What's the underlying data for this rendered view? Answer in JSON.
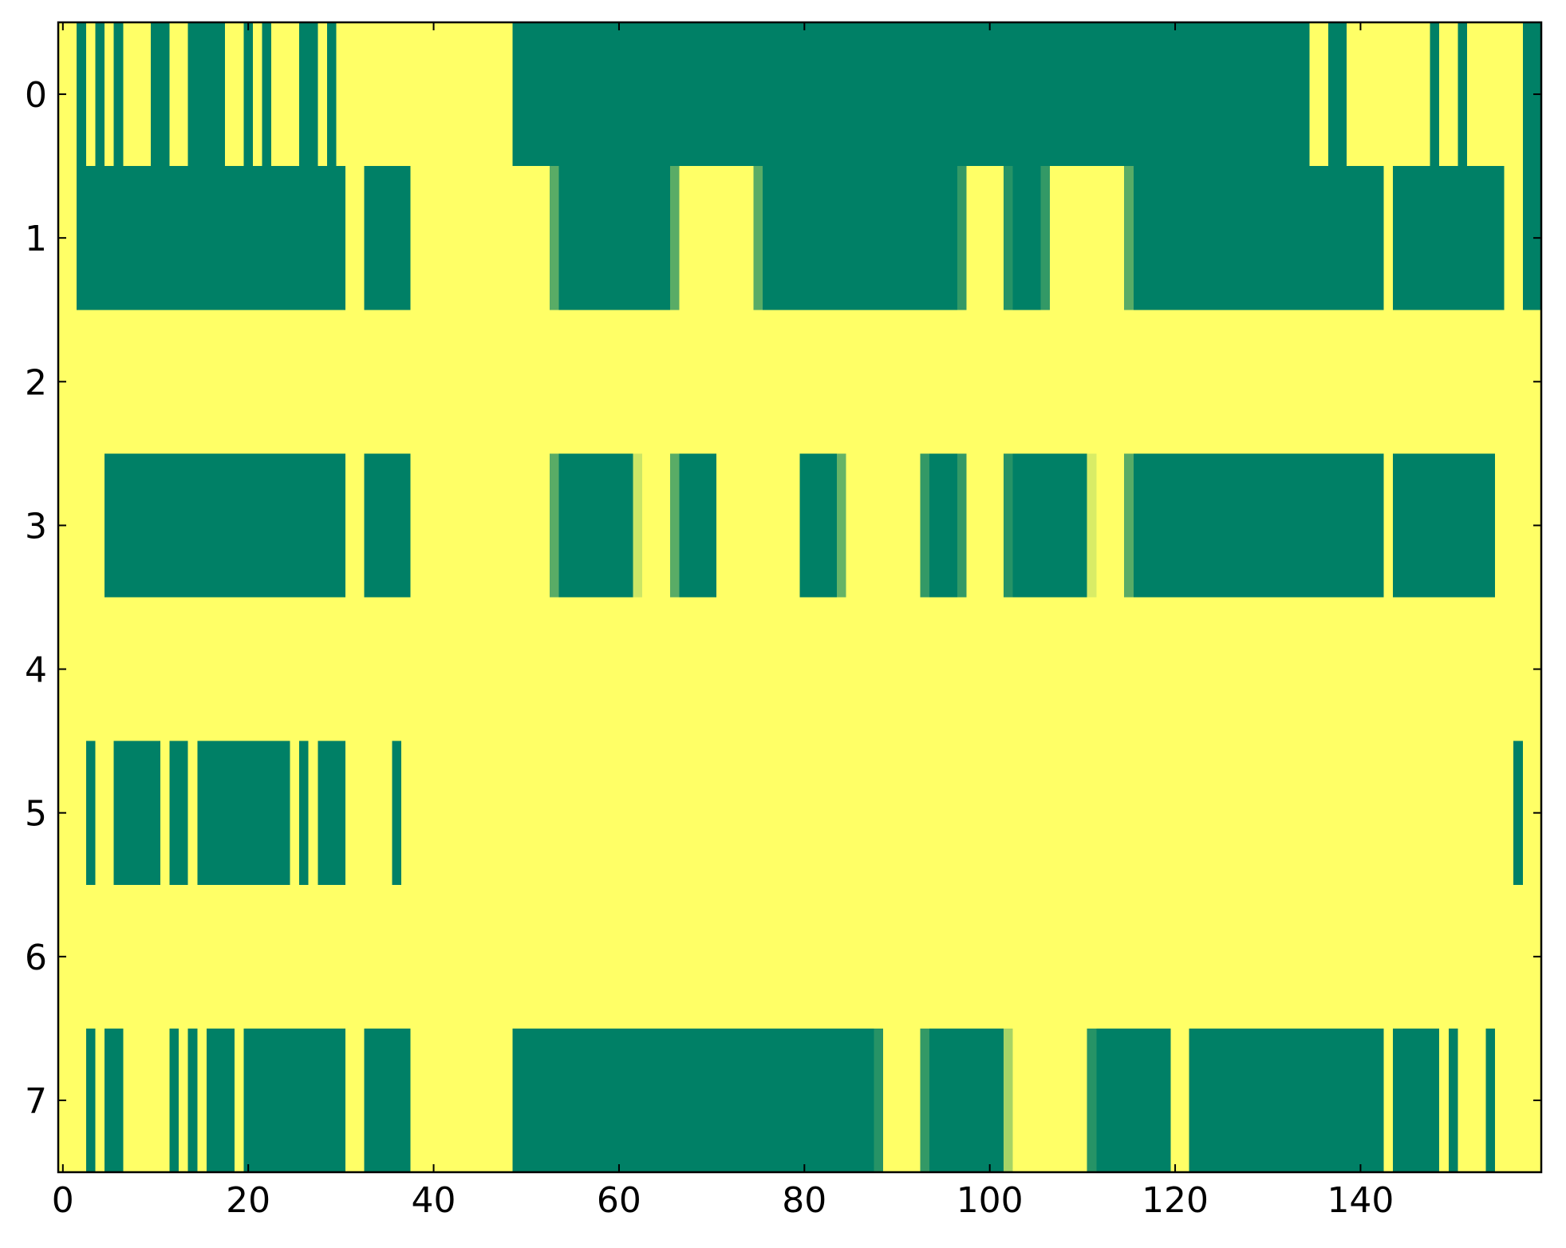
{
  "chart_data": {
    "type": "heatmap",
    "colors": [
      "#008066",
      "#ffff66"
    ],
    "xlim": [
      -0.5,
      159.5
    ],
    "ylim": [
      7.5,
      -0.5
    ],
    "xticks": [
      0,
      20,
      40,
      60,
      80,
      100,
      120,
      140
    ],
    "yticks": [
      0,
      1,
      2,
      3,
      4,
      5,
      6,
      7
    ],
    "z": [
      [
        1,
        1,
        0,
        1,
        0,
        1,
        0,
        1,
        1,
        1,
        0,
        0,
        1,
        1,
        0,
        0,
        0,
        0,
        1,
        1,
        0,
        1,
        0,
        1,
        1,
        1,
        0,
        0,
        1,
        0,
        1,
        1,
        1,
        1,
        1,
        1,
        1,
        1,
        1,
        1,
        1,
        1,
        1,
        1,
        1,
        1,
        1,
        1,
        1,
        0,
        0,
        0,
        0,
        0,
        0,
        0,
        0,
        0,
        0,
        0,
        0,
        0,
        0,
        0,
        0,
        0,
        0,
        0,
        0,
        0,
        0,
        0,
        0,
        0,
        0,
        0,
        0,
        0,
        0,
        0,
        0,
        0,
        0,
        0,
        0,
        0,
        0,
        0,
        0,
        0,
        0,
        0,
        0,
        0,
        0,
        0,
        0,
        0,
        0,
        0,
        0,
        0,
        0,
        0,
        0,
        0,
        0,
        0,
        0,
        0,
        0,
        0,
        0,
        0,
        0,
        0,
        0,
        0,
        0,
        0,
        0,
        0,
        0,
        0,
        0,
        0,
        0,
        0,
        0,
        0,
        0,
        0,
        0,
        0,
        0,
        1,
        1,
        0,
        0,
        1,
        1,
        1,
        1,
        1,
        1,
        1,
        1,
        1,
        0,
        1,
        1,
        0,
        1,
        1,
        1,
        1,
        1,
        1,
        0,
        0
      ],
      [
        1,
        1,
        0,
        0,
        0,
        0,
        0,
        0,
        0,
        0,
        0,
        0,
        0,
        0,
        0,
        0,
        0,
        0,
        0,
        0,
        0,
        0,
        0,
        0,
        0,
        0,
        0,
        0,
        0,
        0,
        0,
        1,
        1,
        0,
        0,
        0,
        0,
        0,
        1,
        1,
        1,
        1,
        1,
        1,
        1,
        1,
        1,
        1,
        1,
        1,
        1,
        1,
        1,
        0.35,
        0,
        0,
        0,
        0,
        0,
        0,
        0,
        0,
        0,
        0,
        0,
        0,
        0.35,
        1,
        1,
        1,
        1,
        1,
        1,
        1,
        1,
        0.35,
        0,
        0,
        0,
        0,
        0,
        0,
        0,
        0,
        0,
        0,
        0,
        0,
        0,
        0,
        0,
        0,
        0,
        0,
        0,
        0,
        0,
        0.2,
        1,
        1,
        1,
        1,
        0.15,
        0,
        0,
        0,
        0.2,
        1,
        1,
        1,
        1,
        1,
        1,
        1,
        1,
        0.35,
        0,
        0,
        0,
        0,
        0,
        0,
        0,
        0,
        0,
        0,
        0,
        0,
        0,
        0,
        0,
        0,
        0,
        0,
        0,
        0,
        0,
        0,
        0,
        0,
        0,
        0,
        0,
        1,
        0,
        0,
        0,
        0,
        0,
        0,
        0,
        0,
        0,
        0,
        0,
        0,
        1,
        1,
        0,
        0
      ],
      [
        1,
        1,
        1,
        1,
        1,
        1,
        1,
        1,
        1,
        1,
        1,
        1,
        1,
        1,
        1,
        1,
        1,
        1,
        1,
        1,
        1,
        1,
        1,
        1,
        1,
        1,
        1,
        1,
        1,
        1,
        1,
        1,
        1,
        1,
        1,
        1,
        1,
        1,
        1,
        1,
        1,
        1,
        1,
        1,
        1,
        1,
        1,
        1,
        1,
        1,
        1,
        1,
        1,
        1,
        1,
        1,
        1,
        1,
        1,
        1,
        1,
        1,
        1,
        1,
        1,
        1,
        1,
        1,
        1,
        1,
        1,
        1,
        1,
        1,
        1,
        1,
        1,
        1,
        1,
        1,
        1,
        1,
        1,
        1,
        1,
        1,
        1,
        1,
        1,
        1,
        1,
        1,
        1,
        1,
        1,
        1,
        1,
        1,
        1,
        1,
        1,
        1,
        1,
        1,
        1,
        1,
        1,
        1,
        1,
        1,
        1,
        1,
        1,
        1,
        1,
        1,
        1,
        1,
        1,
        1,
        1,
        1,
        1,
        1,
        1,
        1,
        1,
        1,
        1,
        1,
        1,
        1,
        1,
        1,
        1,
        1,
        1,
        1,
        1,
        1,
        1,
        1,
        1,
        1,
        1,
        1,
        1,
        1,
        1,
        1,
        1,
        1,
        1,
        1,
        1,
        1,
        1,
        1,
        1,
        1
      ],
      [
        1,
        1,
        1,
        1,
        1,
        0,
        0,
        0,
        0,
        0,
        0,
        0,
        0,
        0,
        0,
        0,
        0,
        0,
        0,
        0,
        0,
        0,
        0,
        0,
        0,
        0,
        0,
        0,
        0,
        0,
        0,
        1,
        1,
        0,
        0,
        0,
        0,
        0,
        1,
        1,
        1,
        1,
        1,
        1,
        1,
        1,
        1,
        1,
        1,
        1,
        1,
        1,
        1,
        0.35,
        0,
        0,
        0,
        0,
        0,
        0,
        0,
        0,
        0.8,
        1,
        1,
        1,
        0.35,
        0,
        0,
        0,
        0,
        1,
        1,
        1,
        1,
        1,
        1,
        1,
        1,
        1,
        0,
        0,
        0,
        0,
        0.4,
        1,
        1,
        1,
        1,
        1,
        1,
        1,
        1,
        0.2,
        0,
        0,
        0,
        0.2,
        1,
        1,
        1,
        1,
        0.15,
        0,
        0,
        0,
        0,
        0,
        0,
        0,
        0,
        0.85,
        1,
        1,
        1,
        0.35,
        0,
        0,
        0,
        0,
        0,
        0,
        0,
        0,
        0,
        0,
        0,
        0,
        0,
        0,
        0,
        0,
        0,
        0,
        0,
        0,
        0,
        0,
        0,
        0,
        0,
        0,
        0,
        1,
        0,
        0,
        0,
        0,
        0,
        0,
        0,
        0,
        0,
        0,
        0,
        1,
        1,
        1,
        1,
        1
      ],
      [
        1,
        1,
        1,
        1,
        1,
        1,
        1,
        1,
        1,
        1,
        1,
        1,
        1,
        1,
        1,
        1,
        1,
        1,
        1,
        1,
        1,
        1,
        1,
        1,
        1,
        1,
        1,
        1,
        1,
        1,
        1,
        1,
        1,
        1,
        1,
        1,
        1,
        1,
        1,
        1,
        1,
        1,
        1,
        1,
        1,
        1,
        1,
        1,
        1,
        1,
        1,
        1,
        1,
        1,
        1,
        1,
        1,
        1,
        1,
        1,
        1,
        1,
        1,
        1,
        1,
        1,
        1,
        1,
        1,
        1,
        1,
        1,
        1,
        1,
        1,
        1,
        1,
        1,
        1,
        1,
        1,
        1,
        1,
        1,
        1,
        1,
        1,
        1,
        1,
        1,
        1,
        1,
        1,
        1,
        1,
        1,
        1,
        1,
        1,
        1,
        1,
        1,
        1,
        1,
        1,
        1,
        1,
        1,
        1,
        1,
        1,
        1,
        1,
        1,
        1,
        1,
        1,
        1,
        1,
        1,
        1,
        1,
        1,
        1,
        1,
        1,
        1,
        1,
        1,
        1,
        1,
        1,
        1,
        1,
        1,
        1,
        1,
        1,
        1,
        1,
        1,
        1,
        1,
        1,
        1,
        1,
        1,
        1,
        1,
        1,
        1,
        1,
        1,
        1,
        1,
        1,
        1,
        1,
        1,
        1
      ],
      [
        1,
        1,
        1,
        0,
        1,
        1,
        0,
        0,
        0,
        0,
        0,
        1,
        0,
        0,
        1,
        0,
        0,
        0,
        0,
        0,
        0,
        0,
        0,
        0,
        0,
        1,
        0,
        1,
        0,
        0,
        0,
        1,
        1,
        1,
        1,
        1,
        0,
        1,
        1,
        1,
        1,
        1,
        1,
        1,
        1,
        1,
        1,
        1,
        1,
        1,
        1,
        1,
        1,
        1,
        1,
        1,
        1,
        1,
        1,
        1,
        1,
        1,
        1,
        1,
        1,
        1,
        1,
        1,
        1,
        1,
        1,
        1,
        1,
        1,
        1,
        1,
        1,
        1,
        1,
        1,
        1,
        1,
        1,
        1,
        1,
        1,
        1,
        1,
        1,
        1,
        1,
        1,
        1,
        1,
        1,
        1,
        1,
        1,
        1,
        1,
        1,
        1,
        1,
        1,
        1,
        1,
        1,
        1,
        1,
        1,
        1,
        1,
        1,
        1,
        1,
        1,
        1,
        1,
        1,
        1,
        1,
        1,
        1,
        1,
        1,
        1,
        1,
        1,
        1,
        1,
        1,
        1,
        1,
        1,
        1,
        1,
        1,
        1,
        1,
        1,
        1,
        1,
        1,
        1,
        1,
        1,
        1,
        1,
        1,
        1,
        1,
        1,
        1,
        1,
        1,
        1,
        1,
        0,
        1,
        1
      ],
      [
        1,
        1,
        1,
        1,
        1,
        1,
        1,
        1,
        1,
        1,
        1,
        1,
        1,
        1,
        1,
        1,
        1,
        1,
        1,
        1,
        1,
        1,
        1,
        1,
        1,
        1,
        1,
        1,
        1,
        1,
        1,
        1,
        1,
        1,
        1,
        1,
        1,
        1,
        1,
        1,
        1,
        1,
        1,
        1,
        1,
        1,
        1,
        1,
        1,
        1,
        1,
        1,
        1,
        1,
        1,
        1,
        1,
        1,
        1,
        1,
        1,
        1,
        1,
        1,
        1,
        1,
        1,
        1,
        1,
        1,
        1,
        1,
        1,
        1,
        1,
        1,
        1,
        1,
        1,
        1,
        1,
        1,
        1,
        1,
        1,
        1,
        1,
        1,
        1,
        1,
        1,
        1,
        1,
        1,
        1,
        1,
        1,
        1,
        1,
        1,
        1,
        1,
        1,
        1,
        1,
        1,
        1,
        1,
        1,
        1,
        1,
        1,
        1,
        1,
        1,
        1,
        1,
        1,
        1,
        1,
        1,
        1,
        1,
        1,
        1,
        1,
        1,
        1,
        1,
        1,
        1,
        1,
        1,
        1,
        1,
        1,
        1,
        1,
        1,
        1,
        1,
        1,
        1,
        1,
        1,
        1,
        1,
        1,
        1,
        1,
        1,
        1,
        1,
        1,
        1,
        1,
        1,
        1,
        1,
        1
      ],
      [
        1,
        1,
        1,
        0,
        1,
        0,
        0,
        1,
        1,
        1,
        1,
        1,
        0,
        1,
        0,
        1,
        0,
        0,
        0,
        1,
        0,
        0,
        0,
        0,
        0,
        0,
        0,
        0,
        0,
        0,
        0,
        1,
        1,
        0,
        0,
        0,
        0,
        0,
        1,
        1,
        1,
        1,
        1,
        1,
        1,
        1,
        1,
        1,
        1,
        0,
        0,
        0,
        0,
        0,
        0,
        0,
        0,
        0,
        0,
        0,
        0,
        0,
        0,
        0,
        0,
        0,
        0,
        0,
        0,
        0,
        0,
        0,
        0,
        0,
        0,
        0,
        0,
        0,
        0,
        0,
        0,
        0,
        0,
        0,
        0,
        0,
        0,
        0,
        0.15,
        1,
        1,
        1,
        1,
        0.2,
        0,
        0,
        0,
        0,
        0,
        0,
        0,
        0,
        0.65,
        1,
        1,
        1,
        1,
        1,
        1,
        1,
        1,
        0.15,
        0,
        0,
        0,
        0,
        0,
        0,
        0,
        0,
        1,
        1,
        0,
        0,
        0,
        0,
        0,
        0,
        0,
        0,
        0,
        0,
        0,
        0,
        0,
        0,
        0,
        0,
        0,
        0,
        0,
        0,
        0,
        1,
        0,
        0,
        0,
        0,
        0,
        1,
        0,
        1,
        1,
        1,
        0,
        1,
        1,
        1,
        1,
        1
      ]
    ]
  }
}
